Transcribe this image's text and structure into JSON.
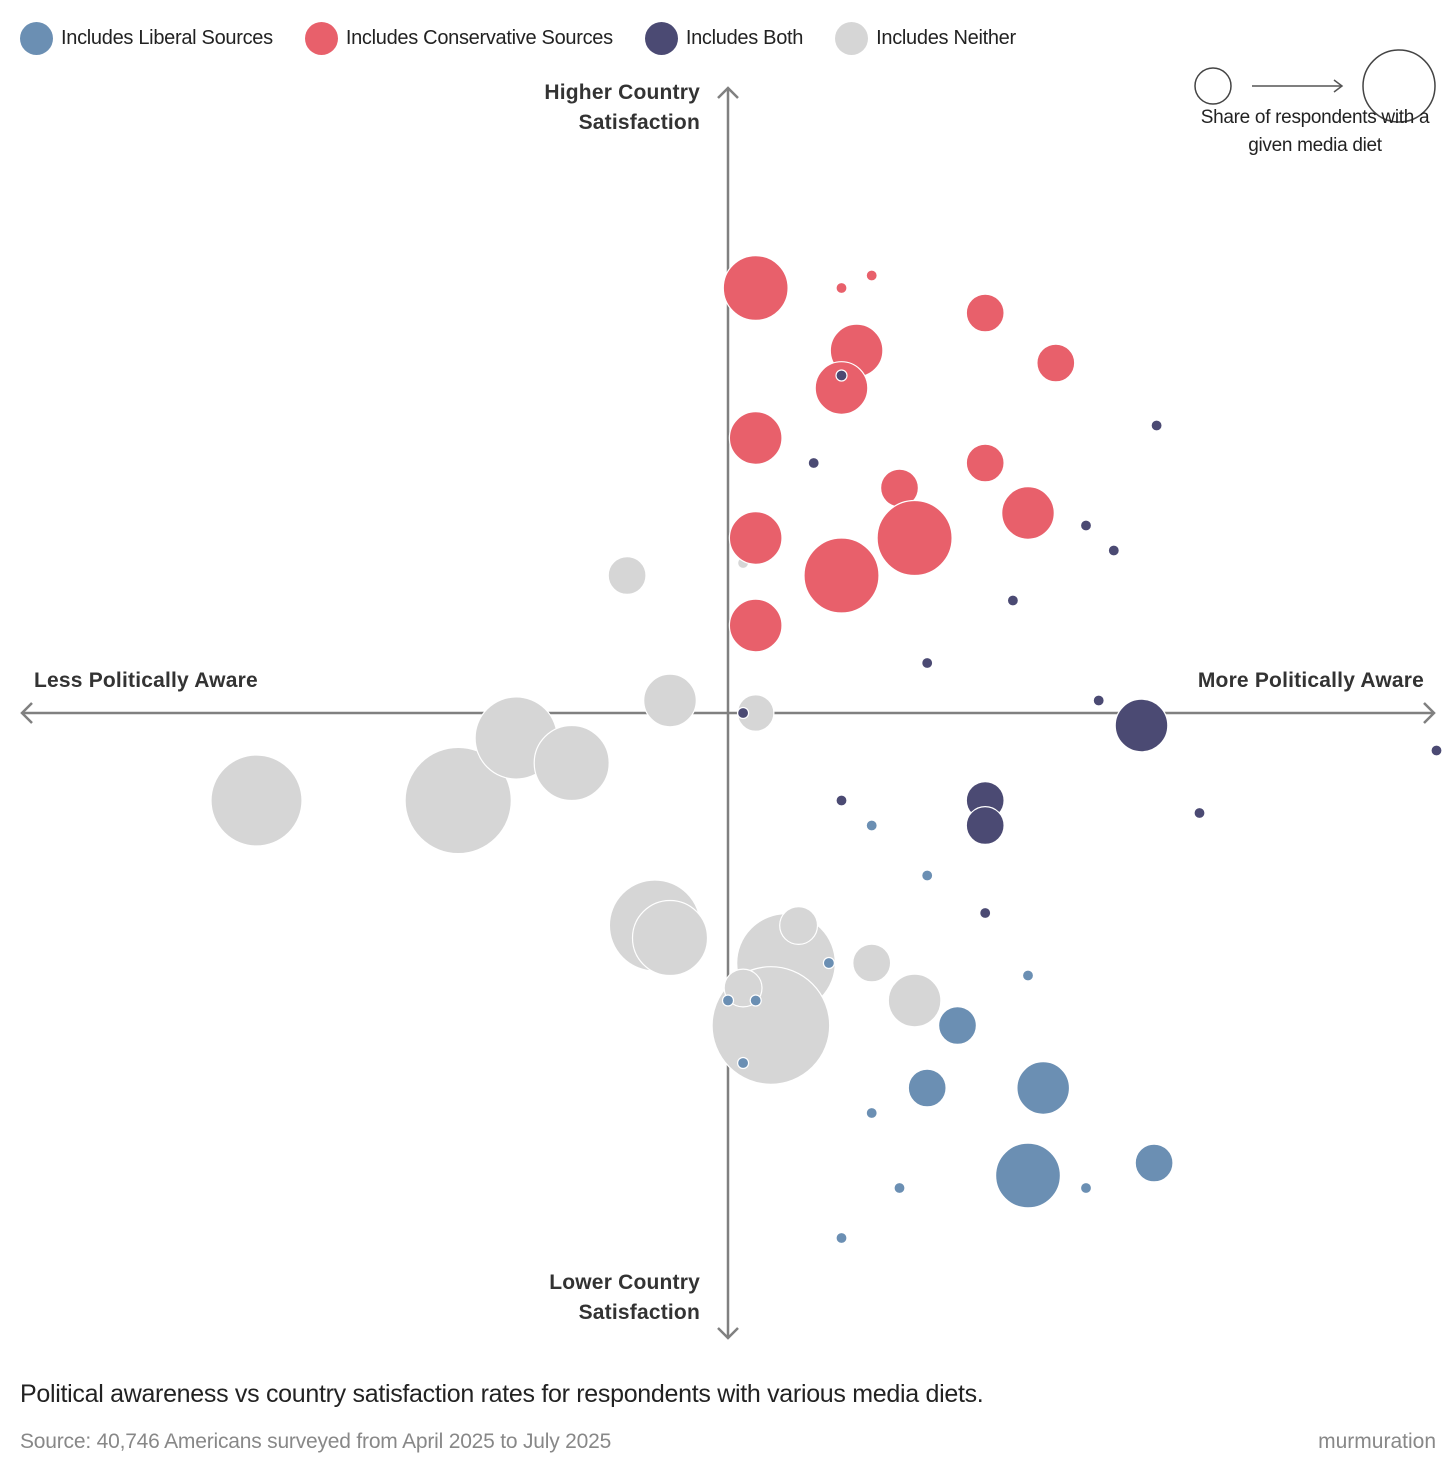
{
  "colors": {
    "liberal": "#6b8fb3",
    "conservative": "#e8606b",
    "both": "#4b4a73",
    "neither": "#d6d6d6",
    "axis": "#808080"
  },
  "legend": {
    "items": [
      {
        "label": "Includes Liberal Sources",
        "key": "liberal"
      },
      {
        "label": "Includes Conservative Sources",
        "key": "conservative"
      },
      {
        "label": "Includes Both",
        "key": "both"
      },
      {
        "label": "Includes Neither",
        "key": "neither"
      }
    ],
    "size_note": "Share of respondents with a given media diet"
  },
  "chart_data": {
    "type": "scatter",
    "title": "Political awareness vs country satisfaction rates for respondents with various media diets.",
    "x_axis": {
      "negative_label": "Less Politically Aware",
      "positive_label": "More Politically Aware",
      "range": [
        -28,
        28
      ]
    },
    "y_axis": {
      "positive_label": "Higher Country Satisfaction",
      "negative_label": "Lower Country Satisfaction",
      "range": [
        -25,
        25
      ]
    },
    "size_encoding": "Share of respondents with a given media diet (relative bubble area)",
    "series": [
      {
        "name": "Includes Neither",
        "key": "neither",
        "points": [
          {
            "x": -18.7,
            "y": -3.5,
            "size": 8.1
          },
          {
            "x": -10.7,
            "y": -3.5,
            "size": 11.0
          },
          {
            "x": -8.4,
            "y": -1.0,
            "size": 6.6
          },
          {
            "x": -6.2,
            "y": -2.0,
            "size": 5.5
          },
          {
            "x": -2.3,
            "y": 0.5,
            "size": 2.7
          },
          {
            "x": -4.0,
            "y": 5.5,
            "size": 1.4
          },
          {
            "x": -2.9,
            "y": -8.5,
            "size": 8.1
          },
          {
            "x": -2.3,
            "y": -9.0,
            "size": 5.5
          },
          {
            "x": 2.3,
            "y": -10.0,
            "size": 9.5
          },
          {
            "x": 2.8,
            "y": -8.5,
            "size": 1.4
          },
          {
            "x": 1.7,
            "y": -12.5,
            "size": 13.5
          },
          {
            "x": 0.6,
            "y": -11.0,
            "size": 1.4
          },
          {
            "x": 5.7,
            "y": -10.0,
            "size": 1.4
          },
          {
            "x": 7.4,
            "y": -11.5,
            "size": 2.7
          },
          {
            "x": 1.1,
            "y": 0.0,
            "size": 1.3
          },
          {
            "x": 0.6,
            "y": 6.0,
            "size": 0.1
          },
          {
            "x": 7.4,
            "y": 6.5,
            "size": 0.1
          }
        ]
      },
      {
        "name": "Includes Conservative Sources",
        "key": "conservative",
        "points": [
          {
            "x": 1.1,
            "y": 17.0,
            "size": 4.1
          },
          {
            "x": 4.5,
            "y": 17.0,
            "size": 0.1
          },
          {
            "x": 5.7,
            "y": 17.5,
            "size": 0.1
          },
          {
            "x": 10.2,
            "y": 16.0,
            "size": 1.4
          },
          {
            "x": 5.1,
            "y": 14.5,
            "size": 2.7
          },
          {
            "x": 13.0,
            "y": 14.0,
            "size": 1.4
          },
          {
            "x": 4.5,
            "y": 13.0,
            "size": 2.7
          },
          {
            "x": 1.1,
            "y": 11.0,
            "size": 2.7
          },
          {
            "x": 10.2,
            "y": 10.0,
            "size": 1.4
          },
          {
            "x": 6.8,
            "y": 9.0,
            "size": 1.4
          },
          {
            "x": 11.9,
            "y": 8.0,
            "size": 2.7
          },
          {
            "x": 1.1,
            "y": 7.0,
            "size": 2.7
          },
          {
            "x": 7.4,
            "y": 7.0,
            "size": 5.5
          },
          {
            "x": 4.5,
            "y": 5.5,
            "size": 5.5
          },
          {
            "x": 1.1,
            "y": 3.5,
            "size": 2.7
          }
        ]
      },
      {
        "name": "Includes Both",
        "key": "both",
        "points": [
          {
            "x": 4.5,
            "y": 13.5,
            "size": 0.1
          },
          {
            "x": 17.0,
            "y": 11.5,
            "size": 0.1
          },
          {
            "x": 3.4,
            "y": 10.0,
            "size": 0.1
          },
          {
            "x": 14.2,
            "y": 7.5,
            "size": 0.1
          },
          {
            "x": 15.3,
            "y": 6.5,
            "size": 0.1
          },
          {
            "x": 11.3,
            "y": 4.5,
            "size": 0.1
          },
          {
            "x": 7.9,
            "y": 2.0,
            "size": 0.1
          },
          {
            "x": 14.7,
            "y": 0.5,
            "size": 0.1
          },
          {
            "x": 16.4,
            "y": -0.5,
            "size": 2.7
          },
          {
            "x": 0.6,
            "y": 0.0,
            "size": 0.1
          },
          {
            "x": 28.1,
            "y": -1.5,
            "size": 0.1
          },
          {
            "x": 4.5,
            "y": -3.5,
            "size": 0.1
          },
          {
            "x": 10.2,
            "y": -3.5,
            "size": 1.4
          },
          {
            "x": 10.2,
            "y": -4.5,
            "size": 1.4
          },
          {
            "x": 18.7,
            "y": -4.0,
            "size": 0.1
          },
          {
            "x": 10.2,
            "y": -8.0,
            "size": 0.1
          }
        ]
      },
      {
        "name": "Includes Liberal Sources",
        "key": "liberal",
        "points": [
          {
            "x": 5.7,
            "y": -4.5,
            "size": 0.1
          },
          {
            "x": 7.9,
            "y": -6.5,
            "size": 0.1
          },
          {
            "x": 4.0,
            "y": -10.0,
            "size": 0.1
          },
          {
            "x": 11.9,
            "y": -10.5,
            "size": 0.1
          },
          {
            "x": 0.0,
            "y": -11.5,
            "size": 0.1
          },
          {
            "x": 1.1,
            "y": -11.5,
            "size": 0.1
          },
          {
            "x": 9.1,
            "y": -12.5,
            "size": 1.4
          },
          {
            "x": 0.6,
            "y": -14.0,
            "size": 0.1
          },
          {
            "x": 7.9,
            "y": -15.0,
            "size": 1.4
          },
          {
            "x": 12.5,
            "y": -15.0,
            "size": 2.7
          },
          {
            "x": 5.7,
            "y": -16.0,
            "size": 0.1
          },
          {
            "x": 16.9,
            "y": -18.0,
            "size": 1.4
          },
          {
            "x": 11.9,
            "y": -18.5,
            "size": 4.1
          },
          {
            "x": 6.8,
            "y": -19.0,
            "size": 0.1
          },
          {
            "x": 14.2,
            "y": -19.0,
            "size": 0.1
          },
          {
            "x": 4.5,
            "y": -21.0,
            "size": 0.1
          }
        ]
      }
    ]
  },
  "caption": "Political awareness vs country satisfaction rates for respondents with various media diets.",
  "source": "Source: 40,746 Americans surveyed from April 2025 to July 2025",
  "brand": "murmuration"
}
